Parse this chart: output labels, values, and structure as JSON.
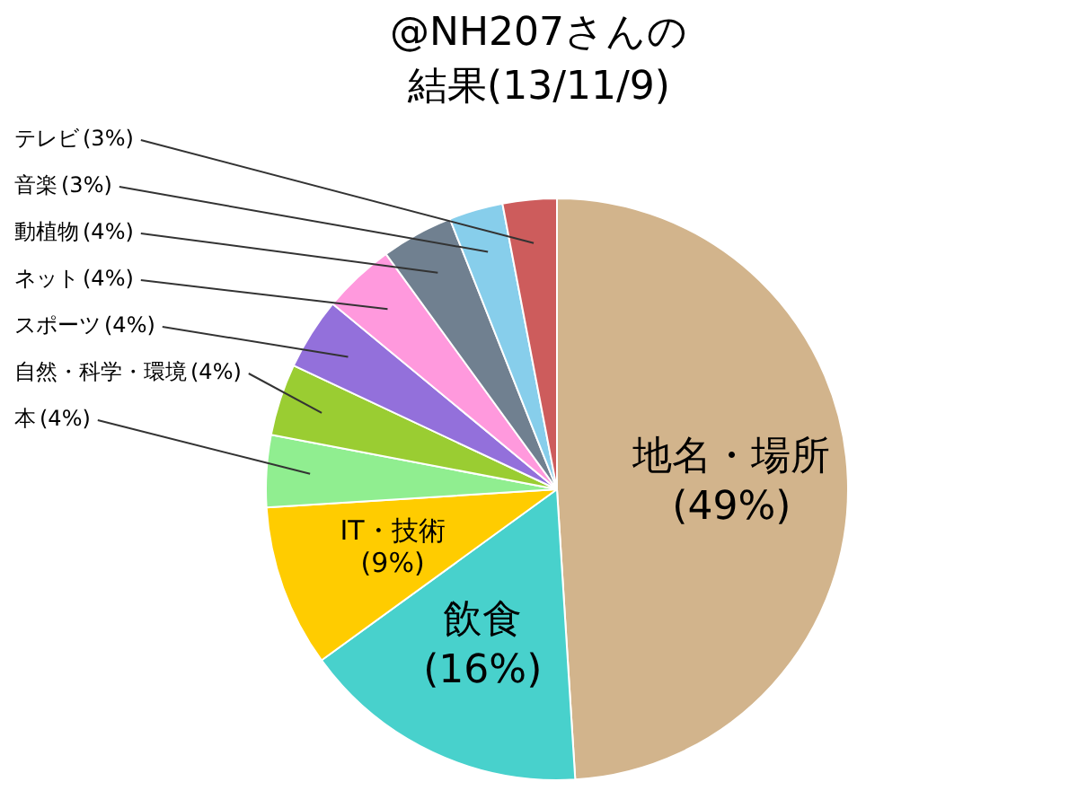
{
  "chart_data": {
    "type": "pie",
    "title": "@NH207さんの",
    "subtitle": "結果(13/11/9)",
    "categories": [
      "地名・場所",
      "飲食",
      "IT・技術",
      "本",
      "自然・科学・環境",
      "スポーツ",
      "ネット",
      "動植物",
      "音楽",
      "テレビ"
    ],
    "values": [
      49,
      16,
      9,
      4,
      4,
      4,
      4,
      4,
      3,
      3
    ],
    "value_labels": [
      "(49%)",
      "(16%)",
      "(9%)",
      "(4%)",
      "(4%)",
      "(4%)",
      "(4%)",
      "(4%)",
      "(3%)",
      "(3%)"
    ],
    "colors": [
      "#d2b48c",
      "#48d1cc",
      "#ffcc00",
      "#90ee90",
      "#9acd32",
      "#9370db",
      "#ff99dd",
      "#708090",
      "#87ceeb",
      "#cd5c5c"
    ],
    "legend": false
  }
}
